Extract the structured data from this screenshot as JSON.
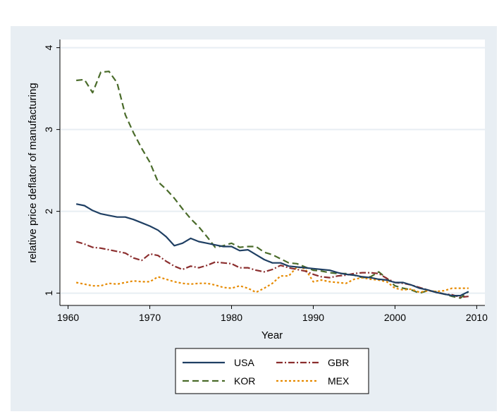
{
  "chart_data": {
    "type": "line",
    "title": "",
    "xlabel": "Year",
    "ylabel": "relative price deflator of manufacturing",
    "xlim": [
      1959,
      2011
    ],
    "ylim": [
      0.85,
      4.1
    ],
    "xticks": [
      "1960",
      "1970",
      "1980",
      "1990",
      "2000",
      "2010"
    ],
    "yticks": [
      "1",
      "2",
      "3",
      "4"
    ],
    "grid": true,
    "legend_position": "bottom",
    "colors": {
      "background": "#e8eef3",
      "plot": "#ffffff",
      "grid": "#e8eef3",
      "USA": "#1f3f63",
      "GBR": "#8b2e2e",
      "KOR": "#4a6b2a",
      "MEX": "#e68a00"
    },
    "x": [
      1961,
      1962,
      1963,
      1964,
      1965,
      1966,
      1967,
      1968,
      1969,
      1970,
      1971,
      1972,
      1973,
      1974,
      1975,
      1976,
      1977,
      1978,
      1979,
      1980,
      1981,
      1982,
      1983,
      1984,
      1985,
      1986,
      1987,
      1988,
      1989,
      1990,
      1991,
      1992,
      1993,
      1994,
      1995,
      1996,
      1997,
      1998,
      1999,
      2000,
      2001,
      2002,
      2003,
      2004,
      2005,
      2006,
      2007,
      2008,
      2009
    ],
    "series": [
      {
        "name": "USA",
        "dash": "solid",
        "values": [
          2.09,
          2.07,
          2.01,
          1.97,
          1.95,
          1.93,
          1.93,
          1.9,
          1.86,
          1.82,
          1.77,
          1.69,
          1.58,
          1.61,
          1.67,
          1.63,
          1.61,
          1.59,
          1.57,
          1.57,
          1.52,
          1.53,
          1.47,
          1.41,
          1.37,
          1.37,
          1.33,
          1.32,
          1.31,
          1.3,
          1.29,
          1.28,
          1.25,
          1.23,
          1.22,
          1.2,
          1.19,
          1.17,
          1.16,
          1.13,
          1.13,
          1.1,
          1.06,
          1.04,
          1.01,
          0.99,
          0.97,
          0.97,
          1.02
        ]
      },
      {
        "name": "GBR",
        "dash": "dashdot",
        "values": [
          1.63,
          1.6,
          1.56,
          1.55,
          1.53,
          1.51,
          1.49,
          1.43,
          1.4,
          1.48,
          1.46,
          1.39,
          1.33,
          1.29,
          1.33,
          1.31,
          1.34,
          1.38,
          1.37,
          1.36,
          1.31,
          1.31,
          1.28,
          1.26,
          1.29,
          1.34,
          1.31,
          1.29,
          1.27,
          1.23,
          1.2,
          1.19,
          1.21,
          1.22,
          1.24,
          1.25,
          1.25,
          1.24,
          1.18,
          1.13,
          1.12,
          1.1,
          1.07,
          1.04,
          1.01,
          0.99,
          0.98,
          0.95,
          0.96
        ]
      },
      {
        "name": "KOR",
        "dash": "dash",
        "values": [
          3.6,
          3.61,
          3.45,
          3.7,
          3.71,
          3.57,
          3.18,
          2.96,
          2.77,
          2.6,
          2.36,
          2.27,
          2.16,
          2.03,
          1.91,
          1.81,
          1.69,
          1.56,
          1.58,
          1.61,
          1.56,
          1.57,
          1.57,
          1.5,
          1.47,
          1.42,
          1.37,
          1.36,
          1.32,
          1.28,
          1.27,
          1.25,
          1.24,
          1.24,
          1.22,
          1.19,
          1.2,
          1.26,
          1.18,
          1.09,
          1.06,
          1.04,
          1.0,
          1.03,
          1.02,
          0.99,
          0.96,
          0.94,
          1.02
        ]
      },
      {
        "name": "MEX",
        "dash": "dot",
        "values": [
          1.13,
          1.11,
          1.09,
          1.09,
          1.12,
          1.11,
          1.13,
          1.15,
          1.14,
          1.14,
          1.2,
          1.17,
          1.14,
          1.12,
          1.11,
          1.12,
          1.12,
          1.1,
          1.07,
          1.06,
          1.09,
          1.06,
          1.01,
          1.06,
          1.12,
          1.21,
          1.21,
          1.32,
          1.3,
          1.14,
          1.16,
          1.14,
          1.13,
          1.12,
          1.17,
          1.19,
          1.17,
          1.16,
          1.14,
          1.06,
          1.04,
          1.05,
          1.01,
          1.03,
          1.02,
          1.03,
          1.06,
          1.06,
          1.06
        ]
      }
    ]
  }
}
